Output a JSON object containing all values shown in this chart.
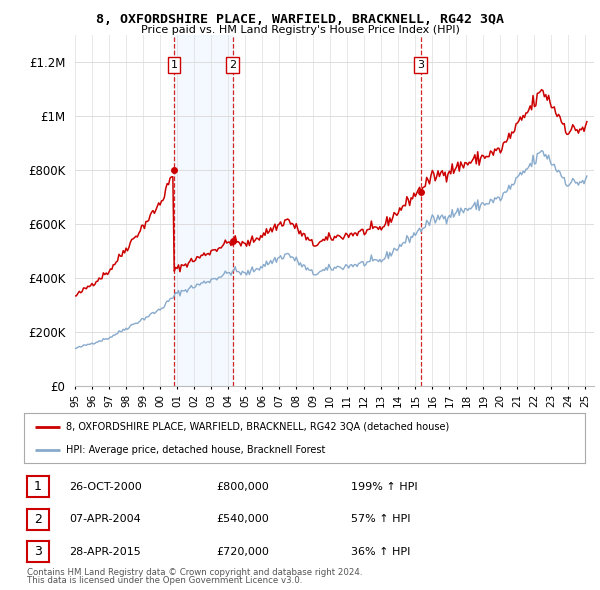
{
  "title": "8, OXFORDSHIRE PLACE, WARFIELD, BRACKNELL, RG42 3QA",
  "subtitle": "Price paid vs. HM Land Registry's House Price Index (HPI)",
  "legend_line1": "8, OXFORDSHIRE PLACE, WARFIELD, BRACKNELL, RG42 3QA (detached house)",
  "legend_line2": "HPI: Average price, detached house, Bracknell Forest",
  "footer1": "Contains HM Land Registry data © Crown copyright and database right 2024.",
  "footer2": "This data is licensed under the Open Government Licence v3.0.",
  "sales": [
    {
      "num": 1,
      "date_x": 2000.82,
      "price": 800000,
      "label": "26-OCT-2000",
      "amount": "£800,000",
      "pct": "199% ↑ HPI"
    },
    {
      "num": 2,
      "date_x": 2004.27,
      "price": 540000,
      "label": "07-APR-2004",
      "amount": "£540,000",
      "pct": "57% ↑ HPI"
    },
    {
      "num": 3,
      "date_x": 2015.32,
      "price": 720000,
      "label": "28-APR-2015",
      "amount": "£720,000",
      "pct": "36% ↑ HPI"
    }
  ],
  "price_color": "#cc0000",
  "hpi_color": "#88aacc",
  "vline_color": "#cc0000",
  "shade_color": "#ddeeff",
  "background_color": "#ffffff",
  "ylim": [
    0,
    1300000
  ],
  "xlim_start": 1995,
  "xlim_end": 2025.5,
  "yticks": [
    0,
    200000,
    400000,
    600000,
    800000,
    1000000,
    1200000
  ],
  "xticks": [
    1995,
    1996,
    1997,
    1998,
    1999,
    2000,
    2001,
    2002,
    2003,
    2004,
    2005,
    2006,
    2007,
    2008,
    2009,
    2010,
    2011,
    2012,
    2013,
    2014,
    2015,
    2016,
    2017,
    2018,
    2019,
    2020,
    2021,
    2022,
    2023,
    2024,
    2025
  ]
}
